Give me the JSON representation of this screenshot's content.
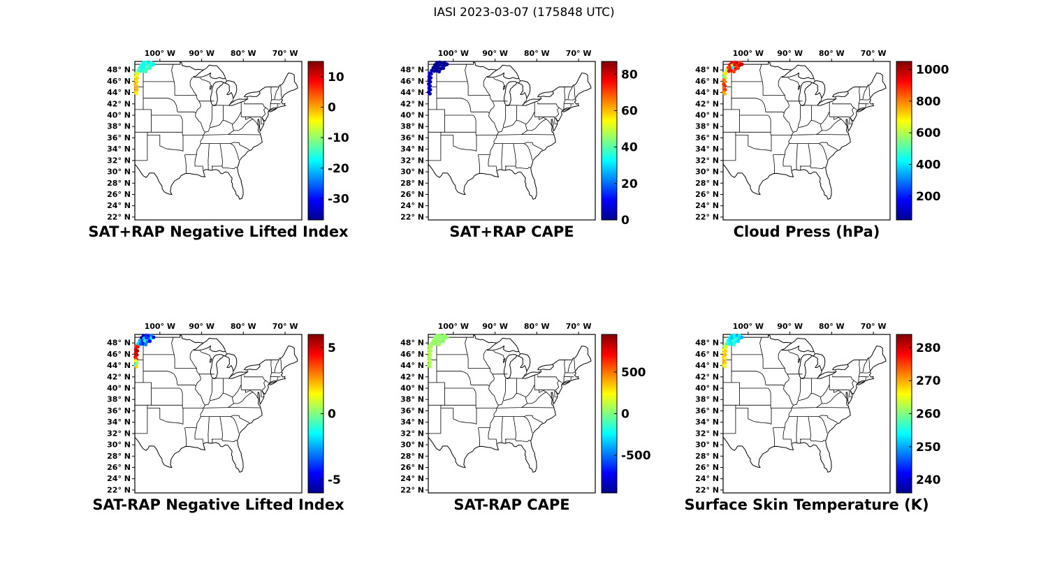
{
  "figure": {
    "title": "IASI 2023-03-07 (175848 UTC)"
  },
  "chart_data": {
    "type": "scatter",
    "colormap": "jet",
    "colormap_stops": [
      {
        "offset": 0,
        "color": "#00008f"
      },
      {
        "offset": 0.125,
        "color": "#0000ff"
      },
      {
        "offset": 0.375,
        "color": "#00ffff"
      },
      {
        "offset": 0.625,
        "color": "#ffff00"
      },
      {
        "offset": 0.875,
        "color": "#ff0000"
      },
      {
        "offset": 1,
        "color": "#800000"
      }
    ],
    "map_extent": {
      "lon": [
        -106,
        -66
      ],
      "lat": [
        21.5,
        49.5
      ]
    },
    "lon_ticks": {
      "labels": [
        "100° W",
        "90° W",
        "80° W",
        "70° W"
      ],
      "values": [
        -100,
        -90,
        -80,
        -70
      ]
    },
    "lat_ticks": {
      "labels": [
        "48° N",
        "46° N",
        "44° N",
        "42° N",
        "40° N",
        "38° N",
        "36° N",
        "34° N",
        "32° N",
        "30° N",
        "28° N",
        "26° N",
        "24° N",
        "22° N"
      ],
      "values": [
        48,
        46,
        44,
        42,
        40,
        38,
        36,
        34,
        32,
        30,
        28,
        26,
        24,
        22
      ]
    },
    "footprints": {
      "lon": [
        -103.9,
        -103.3,
        -102.7,
        -102.1,
        -104.4,
        -103.8,
        -103.2,
        -102.6,
        -102.0,
        -101.5,
        -104.8,
        -104.2,
        -103.6,
        -103.0,
        -102.4,
        -105.2,
        -104.6,
        -104.0,
        -103.4,
        -105.7,
        -105.3,
        -105.8,
        -105.4,
        -105.8,
        -105.5,
        -105.9,
        -105.6,
        -105.8,
        -105.5,
        -105.9,
        -105.6
      ],
      "lat": [
        49.3,
        49.35,
        49.2,
        49.3,
        48.9,
        48.8,
        48.9,
        48.75,
        48.85,
        49.0,
        48.4,
        48.3,
        48.35,
        48.2,
        48.3,
        47.9,
        47.8,
        47.85,
        47.7,
        47.4,
        47.3,
        46.8,
        46.6,
        46.2,
        45.9,
        45.5,
        45.2,
        44.8,
        44.5,
        44.1,
        43.8
      ]
    },
    "panels": [
      {
        "id": "sat-plus-rap-nli",
        "title": "SAT+RAP Negative Lifted Index",
        "cmin": -37,
        "cmax": 15,
        "cbar_tick_values": [
          10,
          0,
          -10,
          -20,
          -30
        ],
        "cbar_tick_labels": [
          "10",
          "0",
          "-10",
          "-20",
          "-30"
        ],
        "values": [
          -17,
          -16,
          -18,
          -15,
          -16,
          -17,
          -15,
          -14,
          -16,
          -18,
          -15,
          -17,
          -16,
          -14,
          -15,
          -13,
          -16,
          -15,
          -14,
          -8,
          -6,
          -4,
          -3,
          -2,
          -3,
          -1,
          -2,
          0,
          -1,
          -2,
          -4
        ]
      },
      {
        "id": "sat-plus-rap-cape",
        "title": "SAT+RAP CAPE",
        "cmin": 0,
        "cmax": 87,
        "cbar_tick_values": [
          80,
          60,
          40,
          20,
          0
        ],
        "cbar_tick_labels": [
          "80",
          "60",
          "40",
          "20",
          "0"
        ],
        "values": [
          1,
          2,
          1,
          3,
          2,
          1,
          2,
          4,
          2,
          1,
          3,
          2,
          1,
          2,
          3,
          5,
          2,
          3,
          4,
          8,
          6,
          5,
          7,
          4,
          6,
          5,
          8,
          6,
          7,
          5,
          6
        ]
      },
      {
        "id": "cloud-press",
        "title": "Cloud Press (hPa)",
        "cmin": 50,
        "cmax": 1050,
        "cbar_tick_values": [
          1000,
          800,
          600,
          400,
          200
        ],
        "cbar_tick_labels": [
          "1000",
          "800",
          "600",
          "400",
          "200"
        ],
        "values": [
          950,
          900,
          980,
          870,
          920,
          600,
          940,
          880,
          960,
          1000,
          850,
          900,
          430,
          920,
          870,
          600,
          940,
          900,
          860,
          650,
          700,
          550,
          600,
          820,
          780,
          860,
          900,
          830,
          870,
          800,
          750
        ]
      },
      {
        "id": "sat-minus-rap-nli",
        "title": "SAT-RAP Negative Lifted Index",
        "cmin": -6,
        "cmax": 6,
        "cbar_tick_values": [
          5,
          0,
          -5
        ],
        "cbar_tick_labels": [
          "5",
          "0",
          "-5"
        ],
        "values": [
          -5,
          -4,
          -4.5,
          -3,
          -5.5,
          -2,
          -4,
          -3.5,
          -1.5,
          -5,
          -2.5,
          -4,
          -1,
          -3,
          -4.5,
          -2,
          -3.5,
          -4,
          -3,
          4,
          4.5,
          5,
          5.5,
          4.8,
          5.2,
          4.4,
          3.8,
          1.5,
          0.5,
          -0.5,
          2
        ]
      },
      {
        "id": "sat-minus-rap-cape",
        "title": "SAT-RAP CAPE",
        "cmin": -950,
        "cmax": 950,
        "cbar_tick_values": [
          500,
          0,
          -500
        ],
        "cbar_tick_labels": [
          "500",
          "0",
          "-500"
        ],
        "values": [
          30,
          50,
          20,
          60,
          40,
          30,
          50,
          20,
          40,
          30,
          60,
          50,
          40,
          30,
          20,
          50,
          40,
          30,
          60,
          80,
          60,
          100,
          70,
          90,
          110,
          80,
          60,
          120,
          90,
          70,
          80
        ]
      },
      {
        "id": "surface-skin-temp",
        "title": "Surface Skin Temperature (K)",
        "cmin": 236,
        "cmax": 284,
        "cbar_tick_values": [
          280,
          270,
          260,
          250,
          240
        ],
        "cbar_tick_labels": [
          "280",
          "270",
          "260",
          "250",
          "240"
        ],
        "values": [
          252,
          254,
          250,
          255,
          253,
          251,
          254,
          256,
          252,
          250,
          255,
          253,
          257,
          254,
          252,
          258,
          255,
          253,
          256,
          262,
          264,
          266,
          268,
          267,
          269,
          268,
          266,
          270,
          268,
          267,
          265
        ]
      }
    ]
  }
}
